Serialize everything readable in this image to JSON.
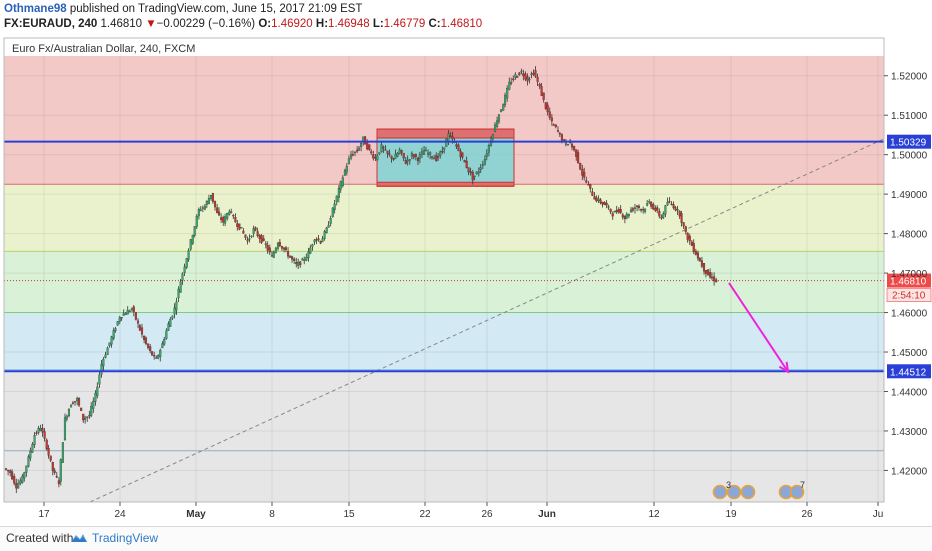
{
  "header": {
    "author": "Othmane98",
    "published": " published on TradingView.com, June 15, 2017 21:09 EST",
    "symbol": "FX:EURAUD, 240",
    "last": " 1.46810 ",
    "change_arrow": "▼",
    "change": "−0.00229 (−0.16%)",
    "open_label": " O:",
    "open": "1.46920",
    "high_label": " H:",
    "high": "1.46948",
    "low_label": " L:",
    "low": "1.46779",
    "close_label": " C:",
    "close": "1.46810"
  },
  "footer": {
    "created_with": "Created with",
    "brand": "TradingView"
  },
  "colors": {
    "up": "#39a86b",
    "down": "#c7342b",
    "blue_line": "#2a3fd6",
    "magenta": "#ee22dd",
    "price_label": "#ef4a4a",
    "red_zone": "#f3c9c8",
    "yellow_zone": "#eaf2cd",
    "green_zone": "#d9f1d6",
    "cyan_zone": "#d3e9f3",
    "gray_zone": "#e6e6e6"
  },
  "chart_data": {
    "type": "candlestick",
    "title": "Euro Fx/Australian Dollar, 240, FXCM",
    "xlabel": "",
    "ylabel": "",
    "x_tick_labels": [
      "17",
      "24",
      "May",
      "8",
      "15",
      "22",
      "26",
      "Jun",
      "12",
      "19",
      "26",
      "Ju"
    ],
    "y_tick_labels": [
      "1.52000",
      "1.51000",
      "1.50000",
      "1.49000",
      "1.48000",
      "1.47000",
      "1.46000",
      "1.45000",
      "1.44000",
      "1.43000",
      "1.42000"
    ],
    "ylim": [
      1.412,
      1.525
    ],
    "grid": true,
    "horizontal_lines": [
      {
        "price": 1.50329,
        "label": "1.50329",
        "style": "solid-blue"
      },
      {
        "price": 1.44512,
        "label": "1.44512",
        "style": "solid-blue"
      }
    ],
    "last_price": {
      "price": 1.4681,
      "label": "1.46810",
      "countdown": "2:54:10"
    },
    "fib_levels": [
      1.525,
      1.4925,
      1.4755,
      1.46,
      1.4455,
      1.425,
      1.412
    ],
    "consolidation_box": {
      "price_top": 1.5065,
      "price_bottom": 1.492
    },
    "trend_line": {
      "from_price": 1.412,
      "to_price": 1.504
    },
    "projection_arrow": {
      "from_price": 1.4675,
      "to_price": 1.445
    },
    "event_badges": [
      "3",
      "7"
    ],
    "price_path": [
      1.4195,
      1.416,
      1.418,
      1.423,
      1.429,
      1.431,
      1.426,
      1.42,
      1.417,
      1.433,
      1.437,
      1.438,
      1.433,
      1.434,
      1.439,
      1.447,
      1.451,
      1.455,
      1.459,
      1.46,
      1.461,
      1.457,
      1.453,
      1.45,
      1.448,
      1.452,
      1.457,
      1.461,
      1.468,
      1.474,
      1.48,
      1.486,
      1.487,
      1.49,
      1.485,
      1.483,
      1.486,
      1.483,
      1.481,
      1.478,
      1.481,
      1.479,
      1.477,
      1.474,
      1.478,
      1.476,
      1.474,
      1.472,
      1.473,
      1.475,
      1.479,
      1.478,
      1.481,
      1.486,
      1.491,
      1.496,
      1.5,
      1.501,
      1.504,
      1.501,
      1.499,
      1.502,
      1.5,
      1.499,
      1.501,
      1.498,
      1.5,
      1.499,
      1.501,
      1.5,
      1.499,
      1.501,
      1.505,
      1.503,
      1.5,
      1.497,
      1.494,
      1.496,
      1.499,
      1.504,
      1.509,
      1.513,
      1.518,
      1.52,
      1.521,
      1.519,
      1.521,
      1.517,
      1.512,
      1.508,
      1.506,
      1.503,
      1.503,
      1.5,
      1.495,
      1.492,
      1.489,
      1.488,
      1.487,
      1.485,
      1.486,
      1.484,
      1.486,
      1.487,
      1.486,
      1.488,
      1.486,
      1.484,
      1.488,
      1.487,
      1.485,
      1.48,
      1.477,
      1.474,
      1.471,
      1.469,
      1.4681
    ]
  }
}
